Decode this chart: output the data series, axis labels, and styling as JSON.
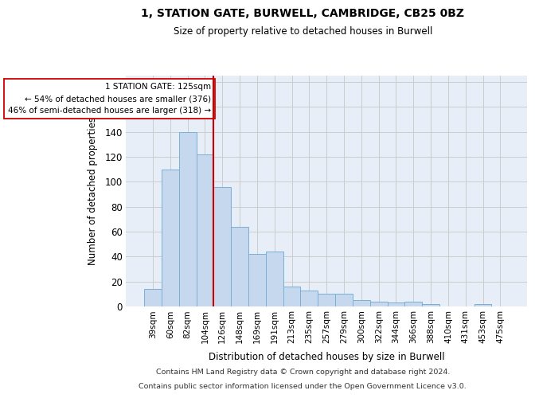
{
  "title1": "1, STATION GATE, BURWELL, CAMBRIDGE, CB25 0BZ",
  "title2": "Size of property relative to detached houses in Burwell",
  "xlabel": "Distribution of detached houses by size in Burwell",
  "ylabel": "Number of detached properties",
  "categories": [
    "39sqm",
    "60sqm",
    "82sqm",
    "104sqm",
    "126sqm",
    "148sqm",
    "169sqm",
    "191sqm",
    "213sqm",
    "235sqm",
    "257sqm",
    "279sqm",
    "300sqm",
    "322sqm",
    "344sqm",
    "366sqm",
    "388sqm",
    "410sqm",
    "431sqm",
    "453sqm",
    "475sqm"
  ],
  "values": [
    14,
    110,
    140,
    122,
    96,
    64,
    42,
    44,
    16,
    13,
    10,
    10,
    5,
    4,
    3,
    4,
    2,
    0,
    0,
    2,
    0
  ],
  "bar_color": "#c5d8ed",
  "bar_edge_color": "#7aafd4",
  "vline_color": "#cc0000",
  "annotation_line1": "1 STATION GATE: 125sqm",
  "annotation_line2": "← 54% of detached houses are smaller (376)",
  "annotation_line3": "46% of semi-detached houses are larger (318) →",
  "annotation_box_color": "#ffffff",
  "annotation_box_edge": "#cc0000",
  "ylim": [
    0,
    185
  ],
  "yticks": [
    0,
    20,
    40,
    60,
    80,
    100,
    120,
    140,
    160,
    180
  ],
  "grid_color": "#cccccc",
  "background_color": "#e8eef8",
  "footnote1": "Contains HM Land Registry data © Crown copyright and database right 2024.",
  "footnote2": "Contains public sector information licensed under the Open Government Licence v3.0."
}
